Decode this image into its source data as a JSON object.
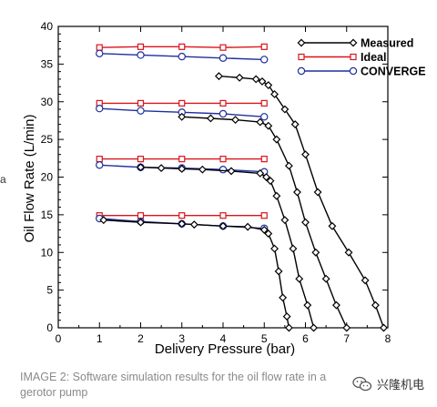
{
  "caption": "IMAGE 2: Software simulation results for the oil flow rate in a gerotor pump",
  "watermark": {
    "text": "兴隆机电"
  },
  "edge_mark": "a",
  "chart_data": {
    "type": "line",
    "xlabel": "Delivery Pressure (bar)",
    "ylabel": "Oil Flow Rate (L/min)",
    "xlim": [
      0,
      8
    ],
    "ylim": [
      0,
      40
    ],
    "xticks": [
      0,
      1,
      2,
      3,
      4,
      5,
      6,
      7,
      8
    ],
    "yticks": [
      0,
      5,
      10,
      15,
      20,
      25,
      30,
      35,
      40
    ],
    "grid": false,
    "legend": "top-right",
    "colors": {
      "Measured": "#000000",
      "Ideal": "#d9141c",
      "CONVERGE": "#1f2f9e"
    },
    "series": [
      {
        "name": "Measured",
        "points": [
          [
            1.1,
            14.3
          ],
          [
            2.0,
            14.0
          ],
          [
            3.0,
            13.8
          ],
          [
            3.3,
            13.7
          ],
          [
            4.0,
            13.5
          ],
          [
            4.6,
            13.4
          ],
          [
            5.0,
            13.0
          ],
          [
            5.1,
            12.5
          ],
          [
            5.25,
            10.5
          ],
          [
            5.35,
            7.5
          ],
          [
            5.45,
            4.0
          ],
          [
            5.55,
            1.5
          ],
          [
            5.6,
            0.0
          ]
        ]
      },
      {
        "name": "Measured",
        "points": [
          [
            2.0,
            21.3
          ],
          [
            2.5,
            21.2
          ],
          [
            3.0,
            21.1
          ],
          [
            3.5,
            21.0
          ],
          [
            4.2,
            20.8
          ],
          [
            4.9,
            20.5
          ],
          [
            5.05,
            20.0
          ],
          [
            5.15,
            19.5
          ],
          [
            5.3,
            17.5
          ],
          [
            5.5,
            14.3
          ],
          [
            5.7,
            10.5
          ],
          [
            5.85,
            6.5
          ],
          [
            6.05,
            3.0
          ],
          [
            6.2,
            0.0
          ]
        ]
      },
      {
        "name": "Measured",
        "points": [
          [
            3.0,
            28.0
          ],
          [
            3.7,
            27.8
          ],
          [
            4.3,
            27.6
          ],
          [
            4.9,
            27.3
          ],
          [
            5.1,
            26.8
          ],
          [
            5.3,
            25.0
          ],
          [
            5.6,
            21.5
          ],
          [
            5.8,
            18.0
          ],
          [
            6.0,
            14.0
          ],
          [
            6.25,
            10.0
          ],
          [
            6.5,
            6.5
          ],
          [
            6.75,
            3.0
          ],
          [
            7.0,
            0.0
          ]
        ]
      },
      {
        "name": "Measured",
        "points": [
          [
            3.9,
            33.4
          ],
          [
            4.4,
            33.2
          ],
          [
            4.8,
            33.0
          ],
          [
            4.95,
            32.7
          ],
          [
            5.1,
            32.2
          ],
          [
            5.25,
            31.0
          ],
          [
            5.5,
            29.0
          ],
          [
            5.75,
            27.0
          ],
          [
            6.0,
            23.0
          ],
          [
            6.3,
            18.0
          ],
          [
            6.65,
            13.5
          ],
          [
            7.05,
            10.0
          ],
          [
            7.45,
            6.3
          ],
          [
            7.7,
            3.0
          ],
          [
            7.9,
            0.0
          ]
        ]
      },
      {
        "name": "Ideal",
        "points": [
          [
            1,
            14.9
          ],
          [
            2,
            14.9
          ],
          [
            3,
            14.9
          ],
          [
            4,
            14.9
          ],
          [
            5,
            14.9
          ]
        ]
      },
      {
        "name": "Ideal",
        "points": [
          [
            1,
            22.4
          ],
          [
            2,
            22.4
          ],
          [
            3,
            22.4
          ],
          [
            4,
            22.4
          ],
          [
            5,
            22.4
          ]
        ]
      },
      {
        "name": "Ideal",
        "points": [
          [
            1,
            29.8
          ],
          [
            2,
            29.8
          ],
          [
            3,
            29.8
          ],
          [
            4,
            29.8
          ],
          [
            5,
            29.8
          ]
        ]
      },
      {
        "name": "Ideal",
        "points": [
          [
            1,
            37.2
          ],
          [
            2,
            37.3
          ],
          [
            3,
            37.3
          ],
          [
            4,
            37.2
          ],
          [
            5,
            37.3
          ]
        ]
      },
      {
        "name": "CONVERGE",
        "points": [
          [
            1,
            14.5
          ],
          [
            2,
            14.1
          ],
          [
            3,
            13.8
          ],
          [
            4,
            13.5
          ],
          [
            5,
            13.2
          ]
        ]
      },
      {
        "name": "CONVERGE",
        "points": [
          [
            1,
            21.6
          ],
          [
            2,
            21.3
          ],
          [
            3,
            21.2
          ],
          [
            4,
            21.0
          ],
          [
            5,
            20.7
          ]
        ]
      },
      {
        "name": "CONVERGE",
        "points": [
          [
            1,
            29.1
          ],
          [
            2,
            28.8
          ],
          [
            3,
            28.6
          ],
          [
            4,
            28.4
          ],
          [
            5,
            28.0
          ]
        ]
      },
      {
        "name": "CONVERGE",
        "points": [
          [
            1,
            36.4
          ],
          [
            2,
            36.2
          ],
          [
            3,
            36.0
          ],
          [
            4,
            35.8
          ],
          [
            5,
            35.6
          ]
        ]
      }
    ]
  }
}
